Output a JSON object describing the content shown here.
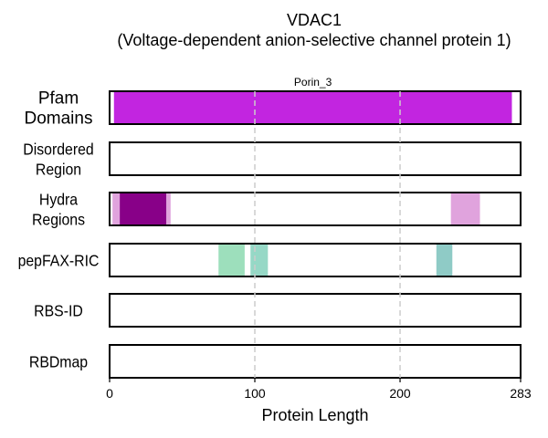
{
  "chart_data": {
    "type": "bar",
    "title": "VDAC1",
    "subtitle": "(Voltage-dependent anion-selective channel protein 1)",
    "xlabel": "Protein Length",
    "xlim": [
      0,
      283
    ],
    "xticks": [
      0,
      100,
      200,
      283
    ],
    "grid_x": [
      100,
      200
    ],
    "tracks": [
      {
        "label_lines": [
          "Pfam",
          "Domains"
        ],
        "segments": [
          {
            "start": 3,
            "end": 277,
            "color": "#c225e0",
            "label": "Porin_3"
          }
        ]
      },
      {
        "label_lines": [
          "Disordered",
          "Region"
        ],
        "segments": []
      },
      {
        "label_lines": [
          "Hydra",
          "Regions"
        ],
        "segments": [
          {
            "start": 2,
            "end": 7,
            "color": "#e0a3dd"
          },
          {
            "start": 36,
            "end": 42,
            "color": "#e0a3dd"
          },
          {
            "start": 7,
            "end": 39,
            "color": "#880088"
          },
          {
            "start": 235,
            "end": 255,
            "color": "#e0a3dd"
          }
        ]
      },
      {
        "label_lines": [
          "pepFAX-RIC"
        ],
        "segments": [
          {
            "start": 75,
            "end": 93,
            "color": "#9ddfbc"
          },
          {
            "start": 97,
            "end": 109,
            "color": "#96d8c6"
          },
          {
            "start": 225,
            "end": 236,
            "color": "#8fcbc6"
          }
        ]
      },
      {
        "label_lines": [
          "RBS-ID"
        ],
        "segments": []
      },
      {
        "label_lines": [
          "RBDmap"
        ],
        "segments": []
      }
    ]
  }
}
